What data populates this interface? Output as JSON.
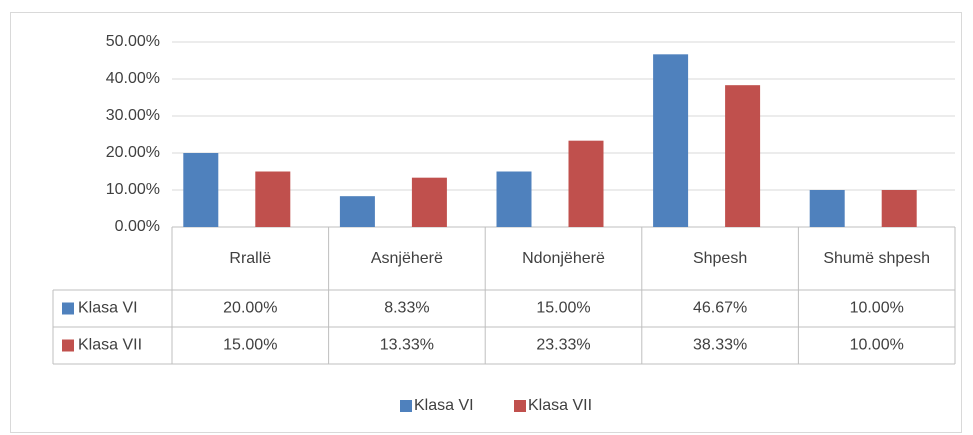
{
  "chart_data": {
    "type": "bar",
    "categories": [
      "Rrallë",
      "Asnjëherë",
      "Ndonjëherë",
      "Shpesh",
      "Shumë shpesh"
    ],
    "series": [
      {
        "name": "Klasa VI",
        "color": "#4f81bd",
        "values": [
          20,
          8.33,
          15,
          46.67,
          10
        ],
        "value_labels": [
          "20.00%",
          "8.33%",
          "15.00%",
          "46.67%",
          "10.00%"
        ]
      },
      {
        "name": "Klasa VII",
        "color": "#c0504d",
        "values": [
          15,
          13.33,
          23.33,
          38.33,
          10
        ],
        "value_labels": [
          "15.00%",
          "13.33%",
          "23.33%",
          "38.33%",
          "10.00%"
        ]
      }
    ],
    "ylim": [
      0,
      50
    ],
    "yticks": [
      {
        "value": 0,
        "label": "0.00%"
      },
      {
        "value": 10,
        "label": "10.00%"
      },
      {
        "value": 20,
        "label": "20.00%"
      },
      {
        "value": 30,
        "label": "30.00%"
      },
      {
        "value": 40,
        "label": "40.00%"
      },
      {
        "value": 50,
        "label": "50.00%"
      }
    ],
    "grid": true,
    "legend": "bottom"
  }
}
